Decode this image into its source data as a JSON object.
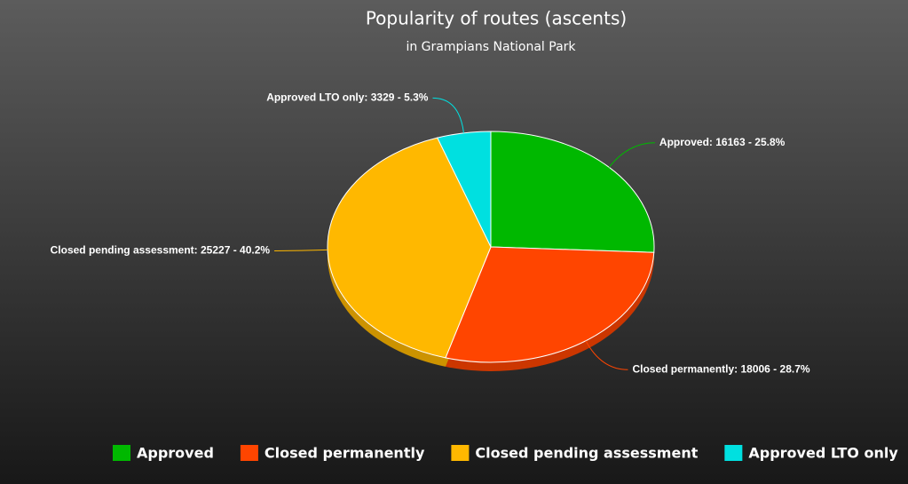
{
  "chart_data": {
    "type": "pie",
    "title": "Popularity of routes (ascents)",
    "subtitle": "in Grampians National Park",
    "categories": [
      "Approved",
      "Closed permanently",
      "Closed pending assessment",
      "Approved LTO only"
    ],
    "values": [
      16163,
      18006,
      25227,
      3329
    ],
    "value_labels": [
      "Approved: 16163 - 25.8%",
      "Closed permanently: 18006 - 28.7%",
      "Closed pending assessment: 25227 - 40.2%",
      "Approved LTO only: 3329 - 5.3%"
    ],
    "colors": [
      "#00b800",
      "#ff4500",
      "#ffb800",
      "#00e0e0"
    ],
    "legend": "bottom"
  }
}
